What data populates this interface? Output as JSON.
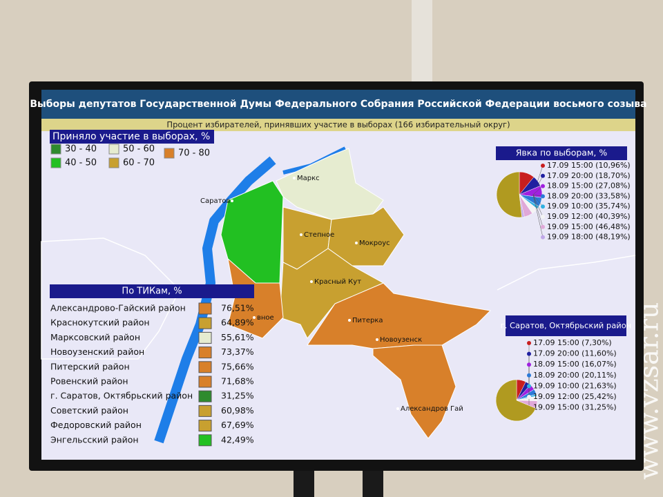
{
  "header": {
    "title": "Выборы депутатов Государственной Думы Федерального Собрания Российской Федерации восьмого созыва",
    "subtitle": "Процент избирателей, принявших участие в выборах (166 избирательный округ)"
  },
  "legend": {
    "title": "Приняло участие в выборах, %",
    "items": [
      {
        "label": "30 - 40",
        "color": "#2e8b2e"
      },
      {
        "label": "40 - 50",
        "color": "#22c022"
      },
      {
        "label": "50 - 60",
        "color": "#e6ecd0"
      },
      {
        "label": "60 - 70",
        "color": "#c8a030"
      },
      {
        "label": "70 - 80",
        "color": "#d8802a"
      }
    ]
  },
  "map": {
    "places": [
      "Маркс",
      "Саратов",
      "Степное",
      "Мокроус",
      "Красный Кут",
      "Питерка",
      "Новоузенск",
      "Александров Гай",
      "вное"
    ]
  },
  "tik": {
    "title": "По ТИКам, %",
    "rows": [
      {
        "name": "Александрово-Гайский район",
        "value": "76,51%",
        "color": "#d8802a"
      },
      {
        "name": "Краснокутский район",
        "value": "64,89%",
        "color": "#c8a030"
      },
      {
        "name": "Марксовский район",
        "value": "55,61%",
        "color": "#e6ecd0"
      },
      {
        "name": "Новоузенский район",
        "value": "73,37%",
        "color": "#d8802a"
      },
      {
        "name": "Питерский район",
        "value": "75,66%",
        "color": "#d8802a"
      },
      {
        "name": "Ровенский район",
        "value": "71,68%",
        "color": "#d8802a"
      },
      {
        "name": "г. Саратов, Октябрьский район",
        "value": "31,25%",
        "color": "#2e8b2e"
      },
      {
        "name": "Советский район",
        "value": "60,98%",
        "color": "#c8a030"
      },
      {
        "name": "Федоровский район",
        "value": "67,69%",
        "color": "#c8a030"
      },
      {
        "name": "Энгельсский район",
        "value": "42,49%",
        "color": "#22c022"
      }
    ]
  },
  "turnout": [
    {
      "title": "Явка по выборам, %",
      "remainder_color": "#b09a20",
      "items": [
        {
          "label": "17.09 15:00 (10,96%)",
          "value": 10.96,
          "color": "#c81e1e"
        },
        {
          "label": "17.09 20:00 (18,70%)",
          "value": 18.7,
          "color": "#2020a0"
        },
        {
          "label": "18.09 15:00 (27,08%)",
          "value": 27.08,
          "color": "#a020e0"
        },
        {
          "label": "18.09 20:00 (33,58%)",
          "value": 33.58,
          "color": "#2a7ad8"
        },
        {
          "label": "19.09 10:00 (35,74%)",
          "value": 35.74,
          "color": "#30b0e0"
        },
        {
          "label": "19.09 12:00 (40,39%)",
          "value": 40.39,
          "color": "#f4f4f4"
        },
        {
          "label": "19.09 15:00 (46,48%)",
          "value": 46.48,
          "color": "#e0a8d8"
        },
        {
          "label": "19.09 18:00 (48,19%)",
          "value": 48.19,
          "color": "#c0a8e8"
        }
      ]
    },
    {
      "title": "г. Саратов, Октябрьский район",
      "remainder_color": "#b09a20",
      "items": [
        {
          "label": "17.09 15:00 (7,30%)",
          "value": 7.3,
          "color": "#c81e1e"
        },
        {
          "label": "17.09 20:00 (11,60%)",
          "value": 11.6,
          "color": "#2020a0"
        },
        {
          "label": "18.09 15:00 (16,07%)",
          "value": 16.07,
          "color": "#a020e0"
        },
        {
          "label": "18.09 20:00 (20,11%)",
          "value": 20.11,
          "color": "#2a7ad8"
        },
        {
          "label": "19.09 10:00 (21,63%)",
          "value": 21.63,
          "color": "#30b0e0"
        },
        {
          "label": "19.09 12:00 (25,42%)",
          "value": 25.42,
          "color": "#f4f4f4"
        },
        {
          "label": "19.09 15:00 (31,25%)",
          "value": 31.25,
          "color": "#e0a8d8"
        }
      ]
    }
  ],
  "watermark": "www.vzsar.ru"
}
